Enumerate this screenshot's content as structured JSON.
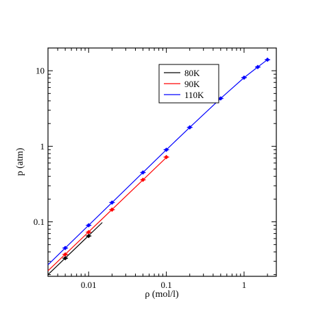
{
  "chart_data": {
    "type": "scatter",
    "title": "",
    "xlabel": "ρ (mol/l)",
    "ylabel": "p (atm)",
    "xscale": "log",
    "yscale": "log",
    "xlim": [
      0.003,
      2.6
    ],
    "ylim": [
      0.019,
      20
    ],
    "x_ticks": [
      {
        "value": 0.01,
        "label": "0.01"
      },
      {
        "value": 0.1,
        "label": "0.1"
      },
      {
        "value": 1,
        "label": "1"
      }
    ],
    "y_ticks": [
      {
        "value": 0.1,
        "label": "0.1"
      },
      {
        "value": 1,
        "label": "1"
      },
      {
        "value": 10,
        "label": "10"
      }
    ],
    "grid": false,
    "legend_position": "top-right",
    "series": [
      {
        "name": "80K",
        "color": "#000000",
        "points": [
          [
            0.005,
            0.033
          ],
          [
            0.01,
            0.065
          ]
        ],
        "fit_line": [
          [
            0.003,
            0.02
          ],
          [
            0.015,
            0.098
          ]
        ]
      },
      {
        "name": "90K",
        "color": "#ff0000",
        "points": [
          [
            0.005,
            0.037
          ],
          [
            0.01,
            0.073
          ],
          [
            0.02,
            0.145
          ],
          [
            0.05,
            0.36
          ],
          [
            0.1,
            0.72
          ]
        ],
        "fit_line": [
          [
            0.003,
            0.0225
          ],
          [
            0.1,
            0.71
          ]
        ]
      },
      {
        "name": "110K",
        "color": "#0000ff",
        "points": [
          [
            0.005,
            0.045
          ],
          [
            0.01,
            0.09
          ],
          [
            0.02,
            0.18
          ],
          [
            0.05,
            0.45
          ],
          [
            0.1,
            0.9
          ],
          [
            0.2,
            1.78
          ],
          [
            0.5,
            4.3
          ],
          [
            1.0,
            8.1
          ],
          [
            1.5,
            11.2
          ],
          [
            2.0,
            14.0
          ]
        ],
        "fit_line": [
          [
            0.003,
            0.027
          ],
          [
            0.005,
            0.045
          ],
          [
            0.01,
            0.09
          ],
          [
            0.02,
            0.18
          ],
          [
            0.05,
            0.45
          ],
          [
            0.1,
            0.9
          ],
          [
            0.2,
            1.78
          ],
          [
            0.5,
            4.3
          ],
          [
            1.0,
            8.1
          ],
          [
            1.5,
            11.2
          ],
          [
            2.0,
            14.0
          ]
        ]
      }
    ]
  }
}
